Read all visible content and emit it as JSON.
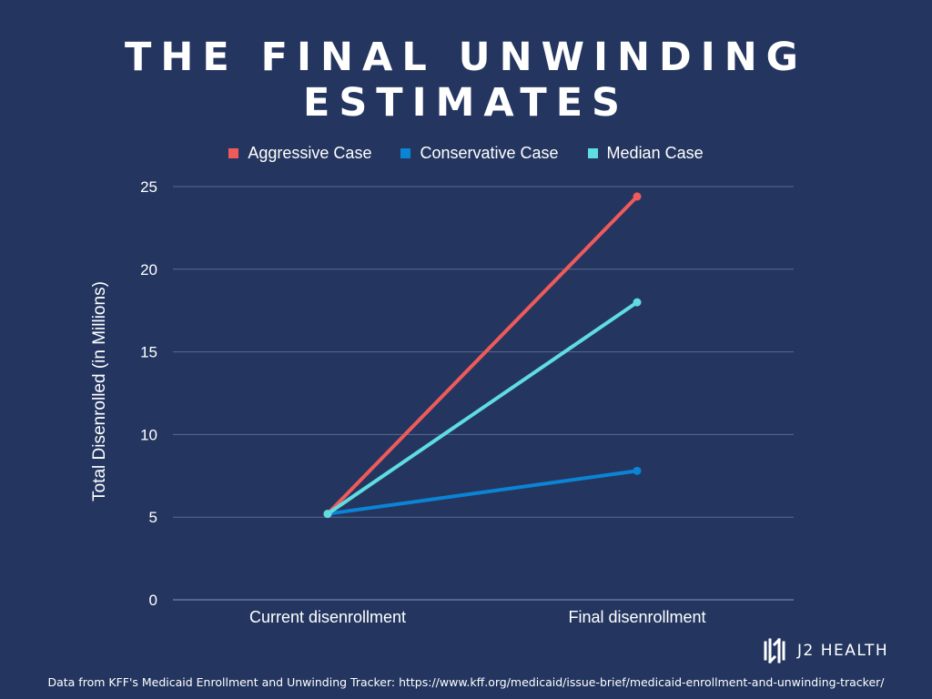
{
  "colors": {
    "background": "#243660",
    "aggressive": "#ef5a5a",
    "conservative": "#0b84d6",
    "median": "#5fdde0",
    "grid": "#5a6a90"
  },
  "brand": {
    "logo_icon": "j2-logo-icon",
    "name": "J2 HEALTH"
  },
  "footnote": "Data from KFF's Medicaid Enrollment and Unwinding Tracker: https://www.kff.org/medicaid/issue-brief/medicaid-enrollment-and-unwinding-tracker/",
  "chart_data": {
    "type": "line",
    "title": "THE FINAL UNWINDING ESTIMATES",
    "xlabel": "",
    "ylabel": "Total Disenrolled (in Millions)",
    "categories": [
      "Current disenrollment",
      "Final disenrollment"
    ],
    "ylim": [
      0,
      25
    ],
    "yticks": [
      "0",
      "5",
      "10",
      "15",
      "20",
      "25"
    ],
    "grid": true,
    "legend_position": "top",
    "series": [
      {
        "name": "Aggressive Case",
        "color": "#ef5a5a",
        "values": [
          5.2,
          24.4
        ]
      },
      {
        "name": "Conservative Case",
        "color": "#0b84d6",
        "values": [
          5.2,
          7.8
        ]
      },
      {
        "name": "Median Case",
        "color": "#5fdde0",
        "values": [
          5.2,
          18.0
        ]
      }
    ]
  }
}
